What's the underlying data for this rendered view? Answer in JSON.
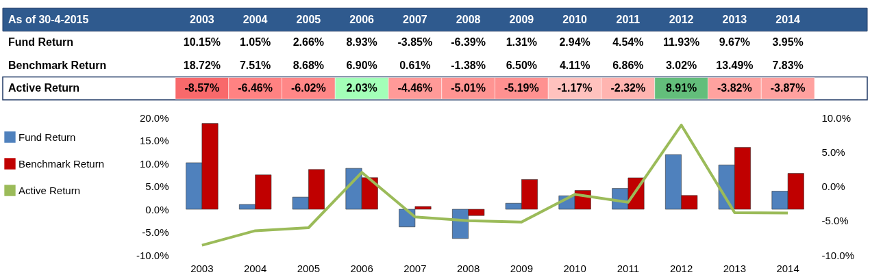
{
  "chart_data": {
    "type": "bar",
    "annotations": [
      "As of 30-4-2015"
    ],
    "categories": [
      "2003",
      "2004",
      "2005",
      "2006",
      "2007",
      "2008",
      "2009",
      "2010",
      "2011",
      "2012",
      "2013",
      "2014"
    ],
    "series": [
      {
        "name": "Fund Return",
        "color": "#4f81bd",
        "values": [
          10.15,
          1.05,
          2.66,
          8.93,
          -3.85,
          -6.39,
          1.31,
          2.94,
          4.54,
          11.93,
          9.67,
          3.95
        ],
        "value_labels": [
          "10.15%",
          "1.05%",
          "2.66%",
          "8.93%",
          "-3.85%",
          "-6.39%",
          "1.31%",
          "2.94%",
          "4.54%",
          "11.93%",
          "9.67%",
          "3.95%"
        ]
      },
      {
        "name": "Benchmark Return",
        "color": "#c00000",
        "values": [
          18.72,
          7.51,
          8.68,
          6.9,
          0.61,
          -1.38,
          6.5,
          4.11,
          6.86,
          3.02,
          13.49,
          7.83
        ],
        "value_labels": [
          "18.72%",
          "7.51%",
          "8.68%",
          "6.90%",
          "0.61%",
          "-1.38%",
          "6.50%",
          "4.11%",
          "6.86%",
          "3.02%",
          "13.49%",
          "7.83%"
        ]
      },
      {
        "name": "Active Return",
        "type": "line",
        "axis": "y2",
        "color": "#9bbb59",
        "line_style": "solid",
        "values": [
          -8.57,
          -6.46,
          -6.02,
          2.03,
          -4.46,
          -5.01,
          -5.19,
          -1.17,
          -2.32,
          8.91,
          -3.82,
          -3.87
        ],
        "value_labels": [
          "-8.57%",
          "-6.46%",
          "-6.02%",
          "2.03%",
          "-4.46%",
          "-5.01%",
          "-5.19%",
          "-1.17%",
          "-2.32%",
          "8.91%",
          "-3.82%",
          "-3.87%"
        ]
      }
    ],
    "ylim": [
      -10,
      20
    ],
    "yticks": [
      {
        "value": -10,
        "label": "-10.0%"
      },
      {
        "value": -5,
        "label": "-5.0%"
      },
      {
        "value": 0,
        "label": "0.0%"
      },
      {
        "value": 5,
        "label": "5.0%"
      },
      {
        "value": 10,
        "label": "10.0%"
      },
      {
        "value": 15,
        "label": "15.0%"
      },
      {
        "value": 20,
        "label": "20.0%"
      }
    ],
    "y2lim": [
      -10,
      10
    ],
    "y2ticks": [
      {
        "value": -10,
        "label": "-10.0%"
      },
      {
        "value": -5,
        "label": "-5.0%"
      },
      {
        "value": 0,
        "label": "0.0%"
      },
      {
        "value": 5,
        "label": "5.0%"
      },
      {
        "value": 10,
        "label": "10.0%"
      }
    ],
    "legend": "left",
    "grid": false,
    "marker": "none"
  }
}
